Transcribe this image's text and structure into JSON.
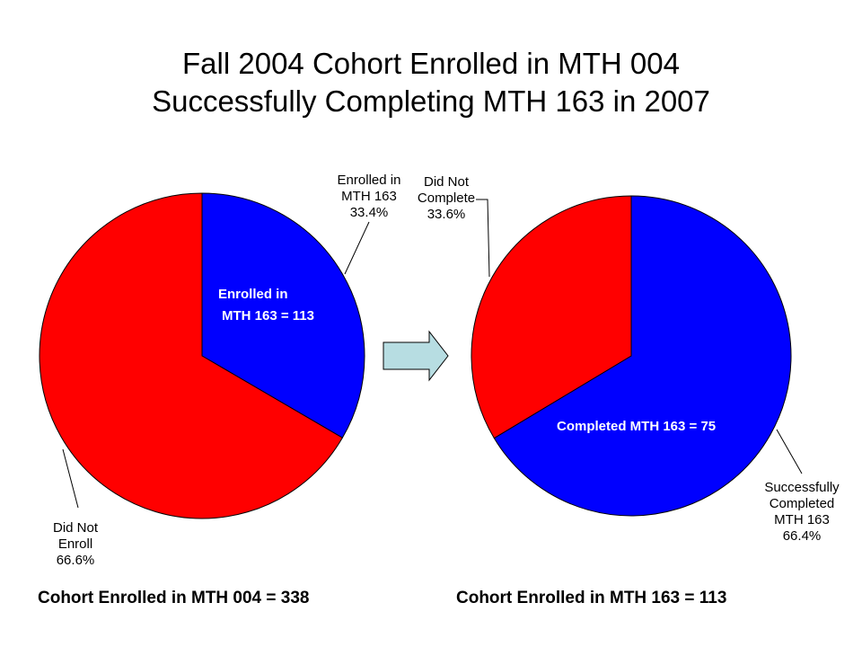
{
  "title": {
    "line1": "Fall 2004 Cohort Enrolled in MTH 004",
    "line2": "Successfully Completing MTH 163 in 2007"
  },
  "colors": {
    "red": "#ff0000",
    "blue": "#0000ff",
    "arrow": "#b7dde2"
  },
  "chart_data": [
    {
      "type": "pie",
      "slices": [
        {
          "label": "Enrolled in MTH 163",
          "value": 33.4,
          "color": "#0000ff",
          "label_lines": [
            "Enrolled in",
            "MTH 163",
            "33.4%"
          ]
        },
        {
          "label": "Did Not Enroll",
          "value": 66.6,
          "color": "#ff0000",
          "label_lines": [
            "Did Not",
            "Enroll",
            "66.6%"
          ]
        }
      ],
      "inner_label_lines": [
        "Enrolled in",
        "MTH 163 = 113"
      ],
      "footer": "Cohort Enrolled in MTH 004 = 338"
    },
    {
      "type": "pie",
      "slices": [
        {
          "label": "Successfully Completed MTH 163",
          "value": 66.4,
          "color": "#0000ff",
          "label_lines": [
            "Successfully",
            "Completed",
            "MTH 163",
            "66.4%"
          ]
        },
        {
          "label": "Did Not Complete",
          "value": 33.6,
          "color": "#ff0000",
          "label_lines": [
            "Did Not",
            "Complete",
            "33.6%"
          ]
        }
      ],
      "inner_label_lines": [
        "Completed MTH 163 = 75"
      ],
      "footer": "Cohort Enrolled in MTH 163 = 113"
    }
  ]
}
